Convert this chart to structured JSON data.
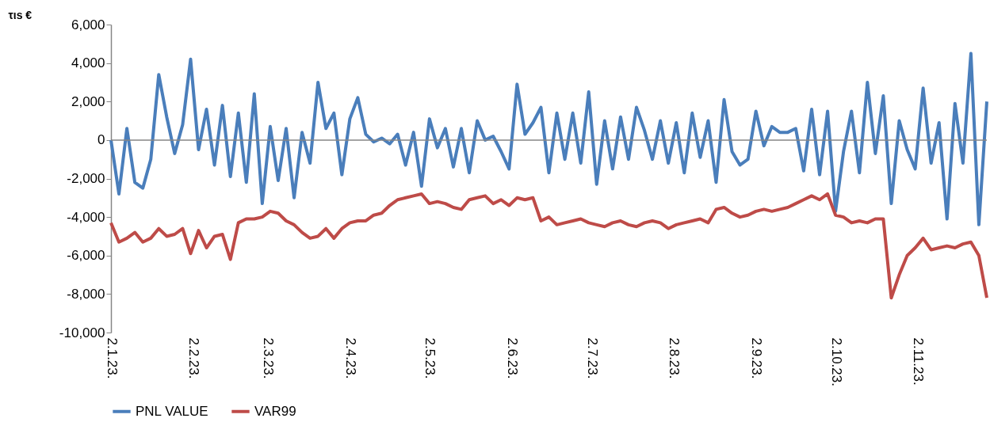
{
  "chart_data": {
    "type": "line",
    "ylabel": "τιs €",
    "x": [
      "2023-01-02",
      "2023-01-05",
      "2023-01-08",
      "2023-01-11",
      "2023-01-14",
      "2023-01-17",
      "2023-01-20",
      "2023-01-23",
      "2023-01-26",
      "2023-01-29",
      "2023-02-01",
      "2023-02-04",
      "2023-02-07",
      "2023-02-10",
      "2023-02-13",
      "2023-02-16",
      "2023-02-19",
      "2023-02-22",
      "2023-02-25",
      "2023-02-28",
      "2023-03-03",
      "2023-03-06",
      "2023-03-09",
      "2023-03-12",
      "2023-03-15",
      "2023-03-18",
      "2023-03-21",
      "2023-03-24",
      "2023-03-27",
      "2023-03-30",
      "2023-04-02",
      "2023-04-05",
      "2023-04-08",
      "2023-04-11",
      "2023-04-14",
      "2023-04-17",
      "2023-04-20",
      "2023-04-23",
      "2023-04-26",
      "2023-04-29",
      "2023-05-02",
      "2023-05-05",
      "2023-05-08",
      "2023-05-11",
      "2023-05-14",
      "2023-05-17",
      "2023-05-20",
      "2023-05-23",
      "2023-05-26",
      "2023-05-29",
      "2023-06-01",
      "2023-06-04",
      "2023-06-07",
      "2023-06-10",
      "2023-06-13",
      "2023-06-16",
      "2023-06-19",
      "2023-06-22",
      "2023-06-25",
      "2023-06-28",
      "2023-07-01",
      "2023-07-04",
      "2023-07-07",
      "2023-07-10",
      "2023-07-13",
      "2023-07-16",
      "2023-07-19",
      "2023-07-22",
      "2023-07-25",
      "2023-07-28",
      "2023-07-31",
      "2023-08-03",
      "2023-08-06",
      "2023-08-09",
      "2023-08-12",
      "2023-08-15",
      "2023-08-18",
      "2023-08-21",
      "2023-08-24",
      "2023-08-27",
      "2023-08-30",
      "2023-09-02",
      "2023-09-05",
      "2023-09-08",
      "2023-09-11",
      "2023-09-14",
      "2023-09-17",
      "2023-09-20",
      "2023-09-23",
      "2023-09-26",
      "2023-09-29",
      "2023-10-02",
      "2023-10-05",
      "2023-10-08",
      "2023-10-11",
      "2023-10-14",
      "2023-10-17",
      "2023-10-20",
      "2023-10-23",
      "2023-10-26",
      "2023-10-29",
      "2023-11-01",
      "2023-11-04",
      "2023-11-07",
      "2023-11-10",
      "2023-11-13",
      "2023-11-16",
      "2023-11-19",
      "2023-11-22",
      "2023-11-25",
      "2023-11-28"
    ],
    "series": [
      {
        "name": "PNL VALUE",
        "color": "#4a7ebb",
        "values": [
          0,
          -2800,
          600,
          -2200,
          -2500,
          -1000,
          3400,
          1200,
          -700,
          800,
          4200,
          -500,
          1600,
          -1300,
          1800,
          -1900,
          1400,
          -2200,
          2400,
          -3300,
          700,
          -2100,
          600,
          -3000,
          400,
          -1200,
          3000,
          600,
          1400,
          -1800,
          1100,
          2200,
          300,
          -100,
          100,
          -200,
          300,
          -1300,
          400,
          -2400,
          1100,
          -400,
          600,
          -1400,
          600,
          -1700,
          1000,
          0,
          200,
          -600,
          -1500,
          2900,
          300,
          900,
          1700,
          -1700,
          1400,
          -1000,
          1400,
          -1200,
          2500,
          -2300,
          1000,
          -1500,
          1200,
          -1000,
          1700,
          500,
          -1000,
          1000,
          -1200,
          900,
          -1700,
          1400,
          -900,
          1000,
          -2200,
          2100,
          -600,
          -1300,
          -1000,
          1500,
          -300,
          700,
          400,
          400,
          600,
          -1600,
          1600,
          -1800,
          1500,
          -3700,
          -600,
          1500,
          -1700,
          3000,
          -700,
          2300,
          -3300,
          1000,
          -500,
          -1500,
          2700,
          -1200,
          900,
          -4100,
          1900,
          -1200,
          4500,
          -4400,
          2000
        ]
      },
      {
        "name": "VAR99",
        "color": "#be4b48",
        "values": [
          -4300,
          -5300,
          -5100,
          -4800,
          -5300,
          -5100,
          -4600,
          -5000,
          -4900,
          -4600,
          -5900,
          -4700,
          -5600,
          -5000,
          -4900,
          -6200,
          -4300,
          -4100,
          -4100,
          -4000,
          -3700,
          -3800,
          -4200,
          -4400,
          -4800,
          -5100,
          -5000,
          -4600,
          -5100,
          -4600,
          -4300,
          -4200,
          -4200,
          -3900,
          -3800,
          -3400,
          -3100,
          -3000,
          -2900,
          -2800,
          -3300,
          -3200,
          -3300,
          -3500,
          -3600,
          -3100,
          -3000,
          -2900,
          -3300,
          -3100,
          -3400,
          -3000,
          -3100,
          -3000,
          -4200,
          -4000,
          -4400,
          -4300,
          -4200,
          -4100,
          -4300,
          -4400,
          -4500,
          -4300,
          -4200,
          -4400,
          -4500,
          -4300,
          -4200,
          -4300,
          -4600,
          -4400,
          -4300,
          -4200,
          -4100,
          -4300,
          -3600,
          -3500,
          -3800,
          -4000,
          -3900,
          -3700,
          -3600,
          -3700,
          -3600,
          -3500,
          -3300,
          -3100,
          -2900,
          -3100,
          -2800,
          -3900,
          -4000,
          -4300,
          -4200,
          -4300,
          -4100,
          -4100,
          -8200,
          -7000,
          -6000,
          -5600,
          -5100,
          -5700,
          -5600,
          -5500,
          -5600,
          -5400,
          -5300,
          -6000,
          -8200
        ]
      }
    ],
    "xlim": [
      "2023-01-02",
      "2023-11-28"
    ],
    "xticks": [
      {
        "value": "2023-01-02",
        "label": "2.1.23."
      },
      {
        "value": "2023-02-02",
        "label": "2.2.23."
      },
      {
        "value": "2023-03-02",
        "label": "2.3.23."
      },
      {
        "value": "2023-04-02",
        "label": "2.4.23."
      },
      {
        "value": "2023-05-02",
        "label": "2.5.23."
      },
      {
        "value": "2023-06-02",
        "label": "2.6.23."
      },
      {
        "value": "2023-07-02",
        "label": "2.7.23."
      },
      {
        "value": "2023-08-02",
        "label": "2.8.23."
      },
      {
        "value": "2023-09-02",
        "label": "2.9.23."
      },
      {
        "value": "2023-10-02",
        "label": "2.10.23."
      },
      {
        "value": "2023-11-02",
        "label": "2.11.23."
      }
    ],
    "ylim": [
      -10000,
      6000
    ],
    "yticks": [
      {
        "value": -10000,
        "label": "-10,000"
      },
      {
        "value": -8000,
        "label": "-8,000"
      },
      {
        "value": -6000,
        "label": "-6,000"
      },
      {
        "value": -4000,
        "label": "-4,000"
      },
      {
        "value": -2000,
        "label": "-2,000"
      },
      {
        "value": 0,
        "label": "0"
      },
      {
        "value": 2000,
        "label": "2,000"
      },
      {
        "value": 4000,
        "label": "4,000"
      },
      {
        "value": 6000,
        "label": "6,000"
      }
    ],
    "ref_lines": [
      {
        "axis": "y",
        "value": 0,
        "color": "#868686"
      }
    ],
    "legend": "bottom",
    "grid": false,
    "marker": "none",
    "line_style": "solid"
  }
}
